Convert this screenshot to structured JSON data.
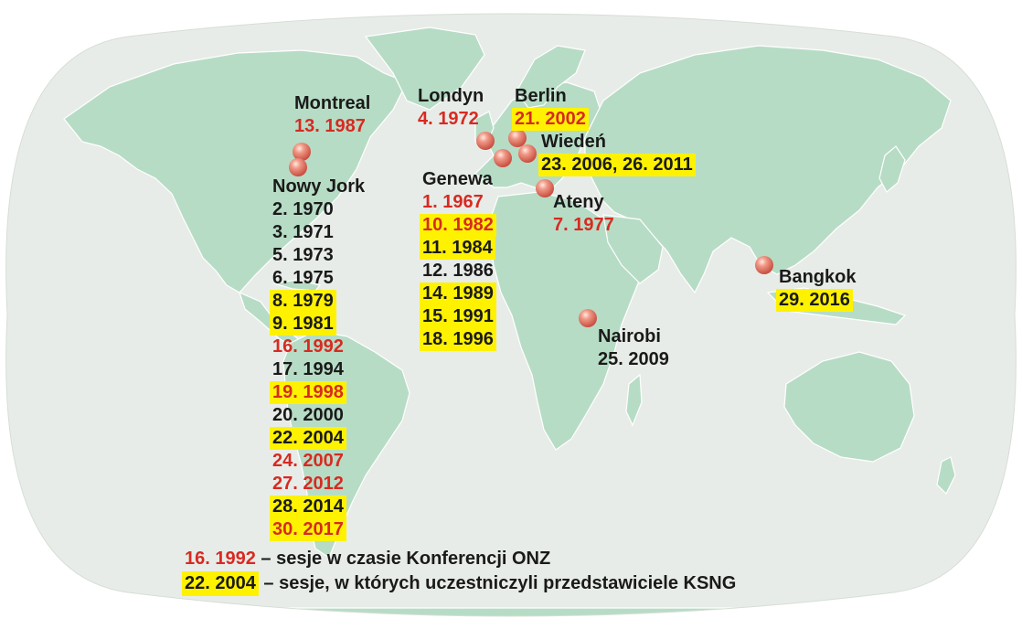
{
  "colors": {
    "ocean": "#e8ece8",
    "land": "#b7dcc5",
    "border": "#ffffff",
    "red": "#d72a22",
    "highlight": "#fff200",
    "marker": "#e7776a"
  },
  "icons": {
    "marker": "sphere-marker"
  },
  "cities": {
    "montreal": {
      "name": "Montreal",
      "sessions": [
        {
          "text": "13. 1987",
          "style": "red"
        }
      ]
    },
    "newyork": {
      "name": "Nowy Jork",
      "sessions": [
        {
          "text": "2. 1970",
          "style": "plain"
        },
        {
          "text": "3. 1971",
          "style": "plain"
        },
        {
          "text": "5. 1973",
          "style": "plain"
        },
        {
          "text": "6. 1975",
          "style": "plain"
        },
        {
          "text": "8. 1979",
          "style": "yellow"
        },
        {
          "text": "9. 1981",
          "style": "yellow"
        },
        {
          "text": "16. 1992",
          "style": "red"
        },
        {
          "text": "17. 1994",
          "style": "plain"
        },
        {
          "text": "19. 1998",
          "style": "yellow-red"
        },
        {
          "text": "20. 2000",
          "style": "plain"
        },
        {
          "text": "22. 2004",
          "style": "yellow"
        },
        {
          "text": "24. 2007",
          "style": "red"
        },
        {
          "text": "27. 2012",
          "style": "red"
        },
        {
          "text": "28. 2014",
          "style": "yellow"
        },
        {
          "text": "30. 2017",
          "style": "yellow-red"
        }
      ]
    },
    "london": {
      "name": "Londyn",
      "sessions": [
        {
          "text": "4. 1972",
          "style": "red"
        }
      ]
    },
    "berlin": {
      "name": "Berlin",
      "sessions": [
        {
          "text": "21. 2002",
          "style": "yellow-red"
        }
      ]
    },
    "vienna": {
      "name": "Wiedeń",
      "sessions": [
        {
          "text": "23. 2006, 26. 2011",
          "style": "yellow"
        }
      ]
    },
    "geneva": {
      "name": "Genewa",
      "sessions": [
        {
          "text": "1. 1967",
          "style": "red"
        },
        {
          "text": "10. 1982",
          "style": "yellow-red"
        },
        {
          "text": "11. 1984",
          "style": "yellow"
        },
        {
          "text": "12. 1986",
          "style": "plain"
        },
        {
          "text": "14. 1989",
          "style": "yellow"
        },
        {
          "text": "15. 1991",
          "style": "yellow"
        },
        {
          "text": "18. 1996",
          "style": "yellow"
        }
      ]
    },
    "athens": {
      "name": "Ateny",
      "sessions": [
        {
          "text": "7. 1977",
          "style": "red"
        }
      ]
    },
    "nairobi": {
      "name": "Nairobi",
      "sessions": [
        {
          "text": "25. 2009",
          "style": "plain"
        }
      ]
    },
    "bangkok": {
      "name": "Bangkok",
      "sessions": [
        {
          "text": "29. 2016",
          "style": "yellow"
        }
      ]
    }
  },
  "legend": {
    "red_key": "16. 1992",
    "red_text": " – sesje w czasie Konferencji ONZ",
    "yellow_key": "22. 2004",
    "yellow_text": " – sesje, w których uczestniczyli przedstawiciele KSNG"
  }
}
